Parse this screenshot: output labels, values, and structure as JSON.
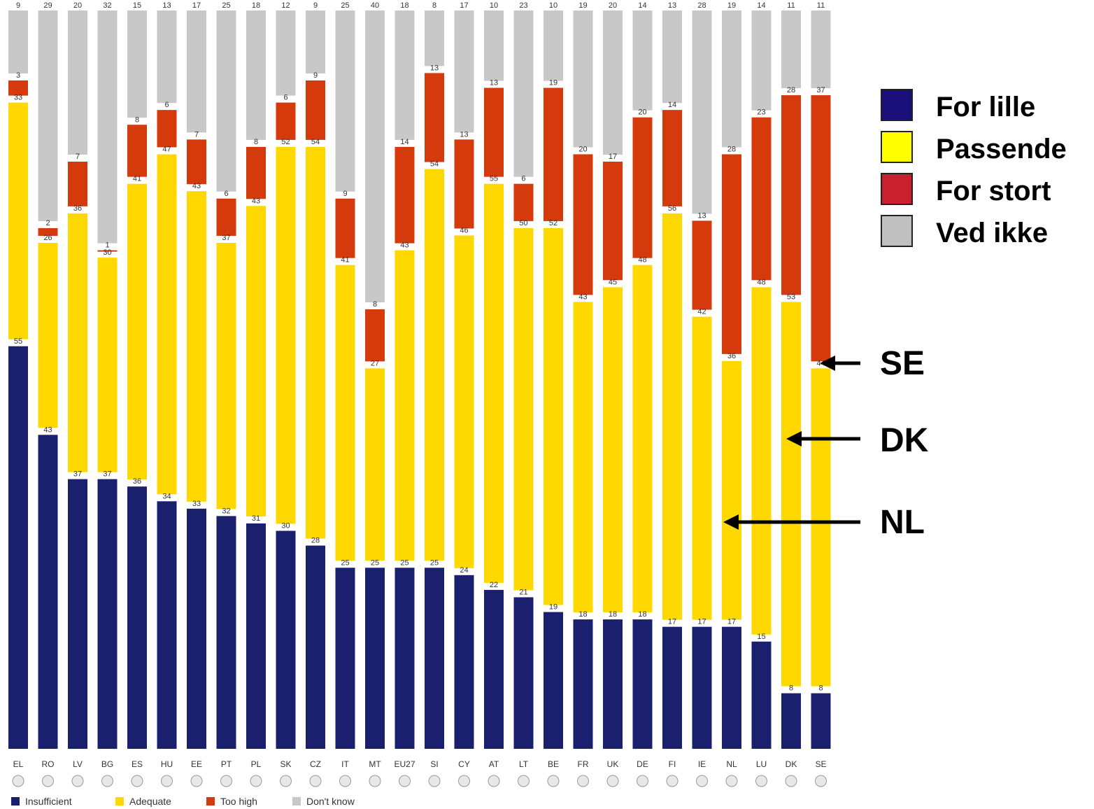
{
  "chart_data": {
    "type": "bar",
    "stacked": true,
    "orientation": "vertical",
    "categories": [
      "EL",
      "RO",
      "LV",
      "BG",
      "ES",
      "HU",
      "EE",
      "PT",
      "PL",
      "SK",
      "CZ",
      "IT",
      "MT",
      "EU27",
      "SI",
      "CY",
      "AT",
      "LT",
      "BE",
      "FR",
      "UK",
      "DE",
      "FI",
      "IE",
      "NL",
      "LU",
      "DK",
      "SE"
    ],
    "series": [
      {
        "name": "Insufficient",
        "color": "#1a1f6e",
        "values": [
          55,
          43,
          37,
          37,
          36,
          34,
          33,
          32,
          31,
          30,
          28,
          25,
          25,
          25,
          25,
          24,
          22,
          21,
          19,
          18,
          18,
          18,
          17,
          17,
          17,
          15,
          8,
          8
        ]
      },
      {
        "name": "Adequate",
        "color": "#ffd800",
        "values": [
          33,
          26,
          36,
          30,
          41,
          47,
          43,
          37,
          43,
          52,
          54,
          41,
          27,
          43,
          54,
          46,
          55,
          50,
          52,
          43,
          45,
          48,
          56,
          42,
          36,
          48,
          53,
          44
        ]
      },
      {
        "name": "Too high",
        "color": "#d43a0c",
        "values": [
          3,
          2,
          7,
          1,
          8,
          6,
          7,
          6,
          8,
          6,
          9,
          9,
          8,
          14,
          13,
          13,
          13,
          6,
          19,
          20,
          17,
          20,
          14,
          13,
          28,
          23,
          28,
          37
        ]
      },
      {
        "name": "Don't know",
        "color": "#c8c8c8",
        "values": [
          9,
          29,
          20,
          32,
          15,
          13,
          17,
          25,
          18,
          12,
          9,
          25,
          40,
          18,
          8,
          17,
          10,
          23,
          10,
          19,
          20,
          14,
          13,
          28,
          19,
          14,
          11,
          11
        ]
      }
    ],
    "grid": false,
    "legend_placement": "bottom-left"
  },
  "top_legend": {
    "entries": [
      {
        "label": "For lille",
        "color": "#1a0f7a"
      },
      {
        "label": "Passende",
        "color": "#ffff00"
      },
      {
        "label": "For stort",
        "color": "#c8202c"
      },
      {
        "label": "Ved ikke",
        "color": "#c0c0c0"
      }
    ]
  },
  "callouts": [
    {
      "label": "SE"
    },
    {
      "label": "DK"
    },
    {
      "label": "NL"
    }
  ]
}
